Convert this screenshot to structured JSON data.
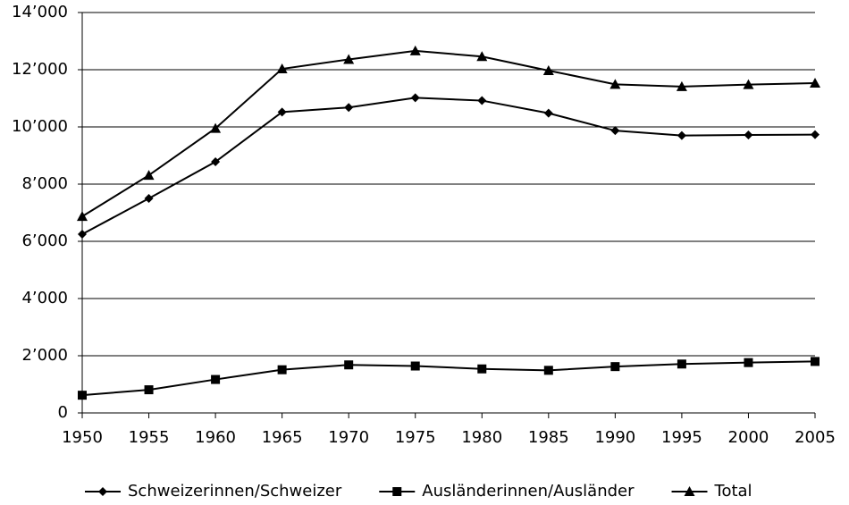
{
  "chart_data": {
    "type": "line",
    "x": [
      1950,
      1955,
      1960,
      1965,
      1970,
      1975,
      1980,
      1985,
      1990,
      1995,
      2000,
      2005
    ],
    "xlim": [
      1950,
      2005
    ],
    "xticks": [
      1950,
      1955,
      1960,
      1965,
      1970,
      1975,
      1980,
      1985,
      1990,
      1995,
      2000,
      2005
    ],
    "ylim": [
      0,
      14000
    ],
    "yticks": [
      0,
      {
        "value": 2000,
        "label": "2’000"
      },
      {
        "value": 4000,
        "label": "4’000"
      },
      {
        "value": 6000,
        "label": "6’000"
      },
      {
        "value": 8000,
        "label": "8’000"
      },
      {
        "value": 10000,
        "label": "10’000"
      },
      {
        "value": 12000,
        "label": "12’000"
      },
      {
        "value": 14000,
        "label": "14’000"
      }
    ],
    "grid": true,
    "legend": "bottom",
    "series": [
      {
        "name": "Schweizerinnen/Schweizer",
        "color": "#000000",
        "marker": "diamond",
        "values": [
          6250,
          7500,
          8780,
          10520,
          10680,
          11020,
          10920,
          10480,
          9870,
          9700,
          9720,
          9730
        ]
      },
      {
        "name": "Ausländerinnen/Ausländer",
        "color": "#000000",
        "marker": "square",
        "values": [
          620,
          810,
          1170,
          1510,
          1680,
          1640,
          1540,
          1490,
          1620,
          1710,
          1760,
          1800
        ]
      },
      {
        "name": "Total",
        "color": "#000000",
        "marker": "triangle",
        "values": [
          6870,
          8310,
          9950,
          12030,
          12360,
          12660,
          12460,
          11970,
          11490,
          11410,
          11480,
          11530
        ]
      }
    ]
  }
}
